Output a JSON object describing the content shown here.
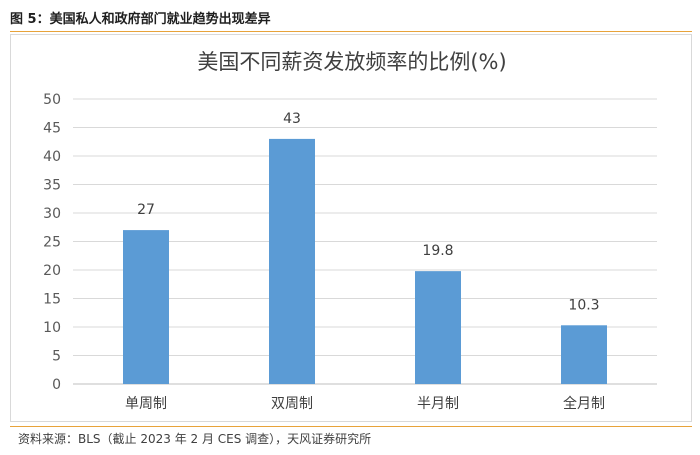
{
  "figure": {
    "caption": "图 5：美国私人和政府部门就业趋势出现差异",
    "source": "资料来源：BLS（截止 2023 年 2 月 CES 调查），天风证券研究所"
  },
  "chart_data": {
    "type": "bar",
    "title": "美国不同薪资发放频率的比例(%)",
    "categories": [
      "单周制",
      "双周制",
      "半月制",
      "全月制"
    ],
    "values": [
      27,
      43,
      19.8,
      10.3
    ],
    "value_labels": [
      "27",
      "43",
      "19.8",
      "10.3"
    ],
    "ylim": [
      0,
      50
    ],
    "yticks": [
      "0",
      "5",
      "10",
      "15",
      "20",
      "25",
      "30",
      "35",
      "40",
      "45",
      "50"
    ],
    "xlabel": "",
    "ylabel": "",
    "grid": true,
    "bar_color": "#5b9bd5",
    "grid_color": "#d9d9d9"
  }
}
